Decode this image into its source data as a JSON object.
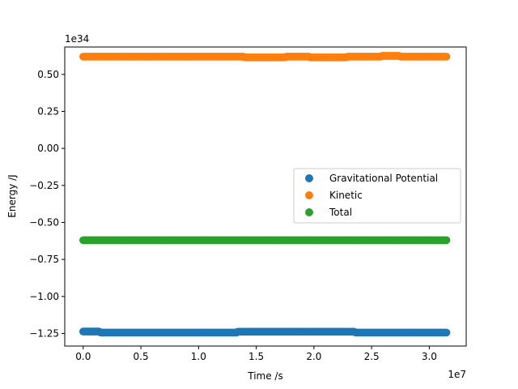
{
  "chart_data": {
    "type": "scatter",
    "xlabel": "Time /s",
    "ylabel": "Energy /J",
    "x_offset_label": "1e7",
    "y_offset_label": "1e34",
    "xlim": [
      -1600000.0,
      33200000.0
    ],
    "ylim": [
      -1.335e+34,
      6.85e+33
    ],
    "x_ticks": [
      0,
      5000000.0,
      10000000.0,
      15000000.0,
      20000000.0,
      25000000.0,
      30000000.0
    ],
    "x_tick_labels": [
      "0.0",
      "0.5",
      "1.0",
      "1.5",
      "2.0",
      "2.5",
      "3.0"
    ],
    "y_ticks": [
      5e+33,
      2.5e+33,
      0,
      -2.5e+33,
      -5e+33,
      -7.5e+33,
      -1e+34,
      -1.25e+34
    ],
    "y_tick_labels": [
      "0.50",
      "0.25",
      "0.00",
      "−0.25",
      "−0.50",
      "−0.75",
      "−1.00",
      "−1.25"
    ],
    "grid": false,
    "legend_position": "center-right",
    "x_range": [
      0,
      31500000.0
    ],
    "series": [
      {
        "name": "Gravitational Potential",
        "color": "#1f77b4",
        "points": [
          [
            0,
            -1.237e+34
          ],
          [
            1400000.0,
            -1.237e+34
          ],
          [
            1500000.0,
            -1.244e+34
          ],
          [
            13300000.0,
            -1.244e+34
          ],
          [
            13400000.0,
            -1.238e+34
          ],
          [
            23500000.0,
            -1.238e+34
          ],
          [
            23600000.0,
            -1.244e+34
          ],
          [
            31500000.0,
            -1.244e+34
          ]
        ]
      },
      {
        "name": "Kinetic",
        "color": "#ff7f0e",
        "points": [
          [
            0,
            6.2e+33
          ],
          [
            13900000.0,
            6.2e+33
          ],
          [
            14000000.0,
            6.15e+33
          ],
          [
            17500000.0,
            6.15e+33
          ],
          [
            17600000.0,
            6.2e+33
          ],
          [
            19600000.0,
            6.2e+33
          ],
          [
            19700000.0,
            6.15e+33
          ],
          [
            22800000.0,
            6.15e+33
          ],
          [
            22900000.0,
            6.2e+33
          ],
          [
            25800000.0,
            6.2e+33
          ],
          [
            25900000.0,
            6.25e+33
          ],
          [
            27400000.0,
            6.25e+33
          ],
          [
            27500000.0,
            6.2e+33
          ],
          [
            31500000.0,
            6.2e+33
          ]
        ]
      },
      {
        "name": "Total",
        "color": "#2ca02c",
        "points": [
          [
            0,
            -6.2e+33
          ],
          [
            31500000.0,
            -6.2e+33
          ]
        ]
      }
    ]
  }
}
